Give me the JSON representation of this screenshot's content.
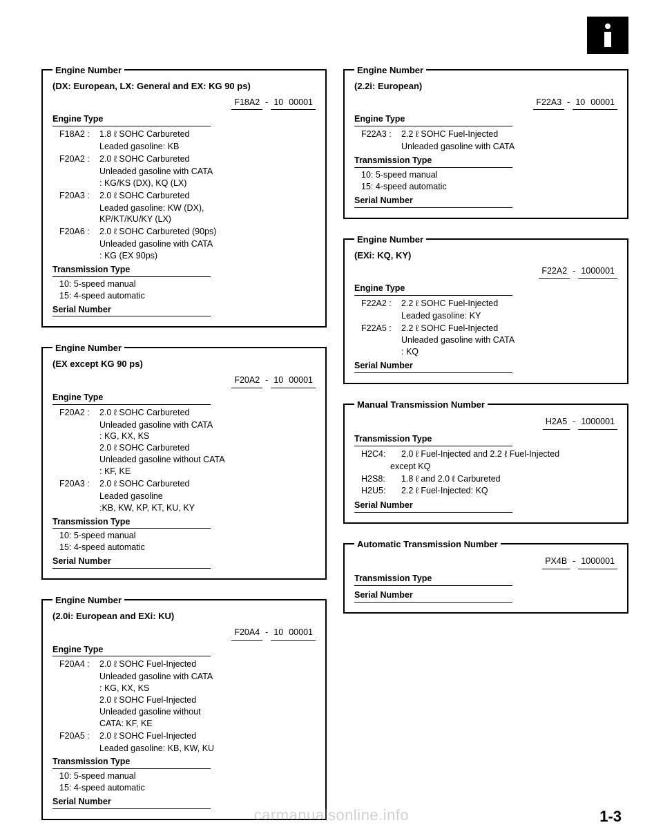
{
  "pageNumber": "1-3",
  "watermark": "carmanualsonline.info",
  "boxes": {
    "b1": {
      "title": "Engine Number",
      "subtitle": "(DX: European, LX: General and EX: KG 90 ps)",
      "code_a": "F18A2",
      "code_b": "10",
      "code_c": "00001",
      "engineTypeLabel": "Engine Type",
      "entries": [
        {
          "k": "F18A2 :",
          "v": "1.8 ℓ SOHC Carbureted",
          "sub": [
            "Leaded gasoline: KB"
          ]
        },
        {
          "k": "F20A2 :",
          "v": "2.0 ℓ SOHC Carbureted",
          "sub": [
            "Unleaded gasoline with CATA",
            ": KG/KS (DX), KQ (LX)"
          ]
        },
        {
          "k": "F20A3 :",
          "v": "2.0 ℓ SOHC Carbureted",
          "sub": [
            "Leaded gasoline: KW (DX),",
            "KP/KT/KU/KY (LX)"
          ]
        },
        {
          "k": "F20A6 :",
          "v": "2.0 ℓ SOHC Carbureted (90ps)",
          "sub": [
            "Unleaded gasoline with CATA",
            ": KG (EX 90ps)"
          ]
        }
      ],
      "transLabel": "Transmission Type",
      "transLines": [
        "10: 5-speed manual",
        "15: 4-speed automatic"
      ],
      "serialLabel": "Serial Number"
    },
    "b2": {
      "title": "Engine Number",
      "subtitle": "(EX except KG 90 ps)",
      "code_a": "F20A2",
      "code_b": "10",
      "code_c": "00001",
      "engineTypeLabel": "Engine Type",
      "entries": [
        {
          "k": "F20A2 :",
          "v": "2.0 ℓ SOHC Carbureted",
          "sub": [
            "Unleaded gasoline with CATA",
            ": KG, KX, KS",
            "2.0 ℓ SOHC Carbureted",
            "Unleaded gasoline without CATA",
            ": KF, KE"
          ]
        },
        {
          "k": "F20A3 :",
          "v": "2.0 ℓ SOHC Carbureted",
          "sub": [
            "Leaded gasoline",
            ":KB, KW, KP, KT, KU, KY"
          ]
        }
      ],
      "transLabel": "Transmission Type",
      "transLines": [
        "10: 5-speed manual",
        "15: 4-speed automatic"
      ],
      "serialLabel": "Serial Number"
    },
    "b3": {
      "title": "Engine Number",
      "subtitle": "(2.0i: European and EXi: KU)",
      "code_a": "F20A4",
      "code_b": "10",
      "code_c": "00001",
      "engineTypeLabel": "Engine Type",
      "entries": [
        {
          "k": "F20A4 :",
          "v": "2.0 ℓ SOHC Fuel-Injected",
          "sub": [
            "Unleaded gasoline with CATA",
            ": KG, KX, KS",
            "2.0 ℓ SOHC Fuel-Injected",
            "Unleaded gasoline without",
            "CATA: KF, KE"
          ]
        },
        {
          "k": "F20A5 :",
          "v": "2.0 ℓ SOHC Fuel-Injected",
          "sub": [
            "Leaded gasoline: KB, KW, KU"
          ]
        }
      ],
      "transLabel": "Transmission Type",
      "transLines": [
        "10: 5-speed manual",
        "15: 4-speed automatic"
      ],
      "serialLabel": "Serial Number"
    },
    "b4": {
      "title": "Engine Number",
      "subtitle": "(2.2i: European)",
      "code_a": "F22A3",
      "code_b": "10",
      "code_c": "00001",
      "engineTypeLabel": "Engine Type",
      "entries": [
        {
          "k": "F22A3 :",
          "v": "2.2 ℓ SOHC Fuel-Injected",
          "sub": [
            "Unleaded gasoline with CATA"
          ]
        }
      ],
      "transLabel": "Transmission Type",
      "transLines": [
        "10: 5-speed manual",
        "15: 4-speed automatic"
      ],
      "serialLabel": "Serial Number"
    },
    "b5": {
      "title": "Engine Number",
      "subtitle": "(EXi: KQ, KY)",
      "code_a": "F22A2",
      "code_b": "",
      "code_c": "1000001",
      "engineTypeLabel": "Engine Type",
      "entries": [
        {
          "k": "F22A2 :",
          "v": "2.2 ℓ SOHC Fuel-Injected",
          "sub": [
            "Leaded gasoline: KY"
          ]
        },
        {
          "k": "F22A5 :",
          "v": "2.2 ℓ SOHC Fuel-Injected",
          "sub": [
            "Unleaded gasoline with CATA",
            ": KQ"
          ]
        }
      ],
      "serialLabel": "Serial Number"
    },
    "b6": {
      "title": "Manual Transmission Number",
      "code_a": "H2A5",
      "code_b": "",
      "code_c": "1000001",
      "transLabel": "Transmission Type",
      "entries2": [
        {
          "k": "H2C4:",
          "v": "2.0 ℓ  Fuel-Injected and 2.2 ℓ  Fuel-Injected",
          "sub": [
            "except KQ"
          ]
        },
        {
          "k": "H2S8:",
          "v": "1.8 ℓ  and 2.0 ℓ  Carbureted",
          "sub": []
        },
        {
          "k": "H2U5:",
          "v": "2.2 ℓ  Fuel-Injected: KQ",
          "sub": []
        }
      ],
      "serialLabel": "Serial Number"
    },
    "b7": {
      "title": "Automatic Transmission Number",
      "code_a": "PX4B",
      "code_b": "",
      "code_c": "1000001",
      "transLabel": "Transmission Type",
      "serialLabel": "Serial Number"
    }
  }
}
